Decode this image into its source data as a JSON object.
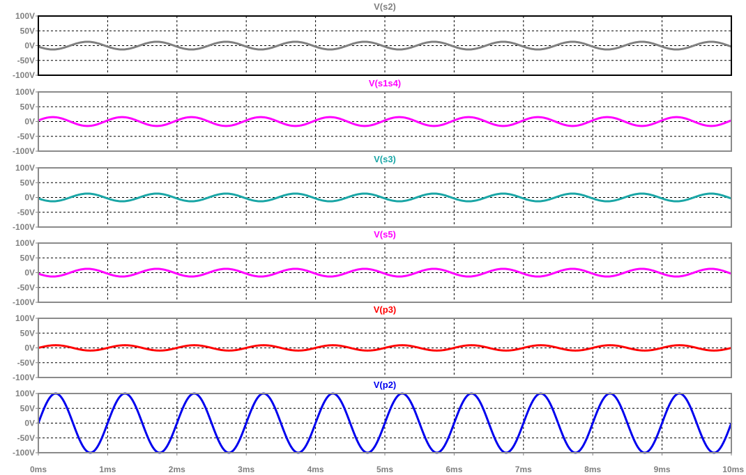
{
  "chart_data": {
    "type": "line",
    "x_ticks": [
      "0ms",
      "1ms",
      "2ms",
      "3ms",
      "4ms",
      "5ms",
      "6ms",
      "7ms",
      "8ms",
      "9ms",
      "10ms"
    ],
    "y_ticks": [
      "100V",
      "50V",
      "0V",
      "-50V",
      "-100V"
    ],
    "xlim": [
      0,
      10
    ],
    "ylim": [
      -100,
      100
    ],
    "grid": true,
    "x_unit": "ms",
    "panes": [
      {
        "name": "V(s2)",
        "color": "#808080",
        "amplitude": 13,
        "frequency_khz": 1,
        "phase_deg": 195,
        "frame": "active"
      },
      {
        "name": "V(s1s4)",
        "color": "#ff00ff",
        "amplitude": 15,
        "frequency_khz": 1,
        "phase_deg": 15,
        "frame": "normal"
      },
      {
        "name": "V(s3)",
        "color": "#1aa6a6",
        "amplitude": 13,
        "frequency_khz": 1,
        "phase_deg": 195,
        "frame": "normal"
      },
      {
        "name": "V(s5)",
        "color": "#ff00ff",
        "amplitude": 13,
        "frequency_khz": 1,
        "phase_deg": 195,
        "frame": "normal"
      },
      {
        "name": "V(p3)",
        "color": "#ff0000",
        "amplitude": 9,
        "frequency_khz": 1,
        "phase_deg": 0,
        "frame": "normal"
      },
      {
        "name": "V(p2)",
        "color": "#0000ee",
        "amplitude": 100,
        "frequency_khz": 1,
        "phase_deg": 0,
        "frame": "normal"
      }
    ]
  }
}
